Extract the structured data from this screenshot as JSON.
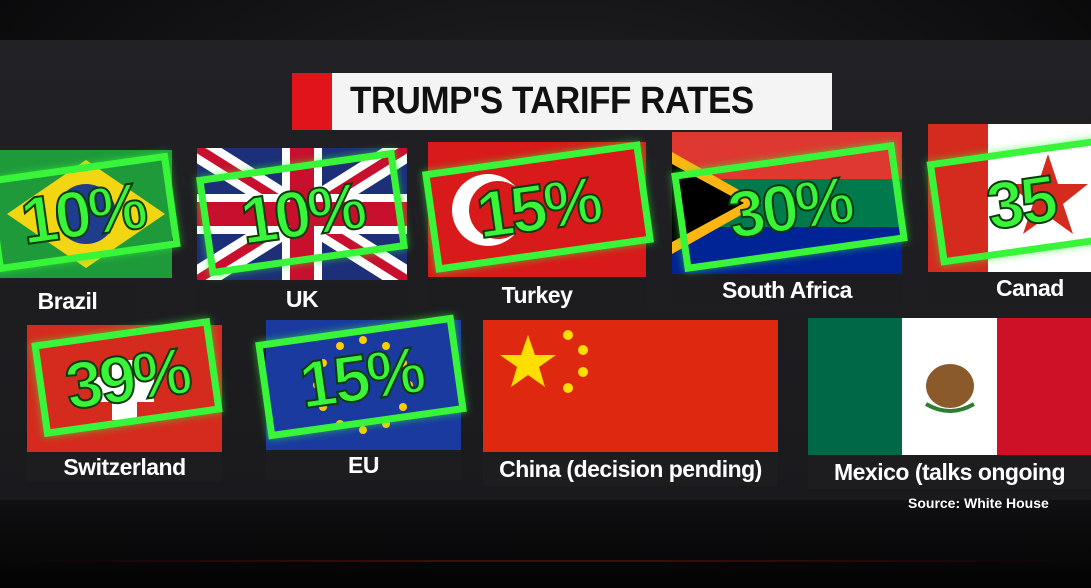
{
  "title": "TRUMP'S TARIFF RATES",
  "source": "Source: White House",
  "countries": [
    {
      "name": "Brazil",
      "rate": "10%"
    },
    {
      "name": "UK",
      "rate": "10%"
    },
    {
      "name": "Turkey",
      "rate": "15%"
    },
    {
      "name": "South Africa",
      "rate": "30%"
    },
    {
      "name": "Canad",
      "rate": "35"
    },
    {
      "name": "Switzerland",
      "rate": "39%"
    },
    {
      "name": "EU",
      "rate": "15%"
    },
    {
      "name": "China (decision pending)",
      "rate": ""
    },
    {
      "name": "Mexico (talks ongoing",
      "rate": ""
    }
  ],
  "colors": {
    "stamp": "#39f53a",
    "accent_red": "#e0141a"
  }
}
